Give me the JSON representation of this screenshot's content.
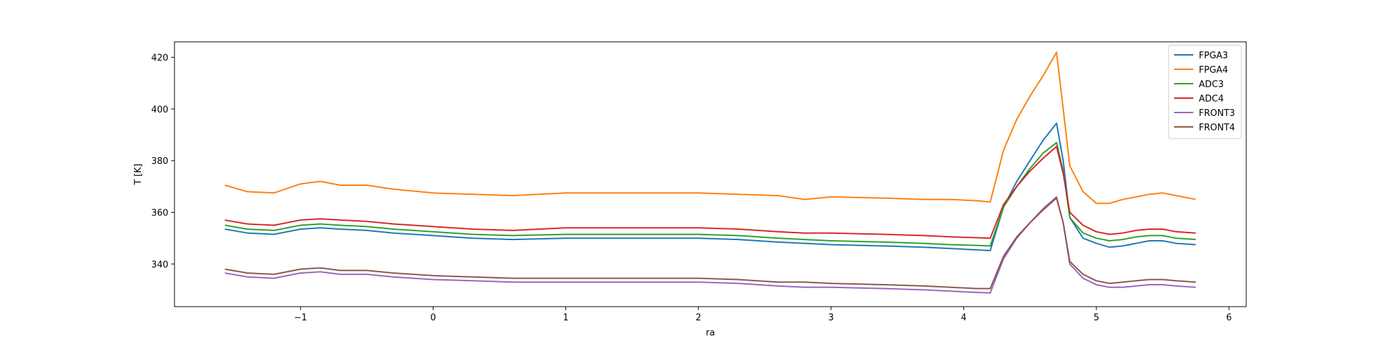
{
  "chart_data": {
    "type": "line",
    "title": "",
    "xlabel": "ra",
    "ylabel": "T [K]",
    "xlim": [
      -1.95,
      6.13
    ],
    "ylim": [
      323.5,
      426.0
    ],
    "xticks": [
      -1,
      0,
      1,
      2,
      3,
      4,
      5,
      6
    ],
    "xtick_labels": [
      "−1",
      "0",
      "1",
      "2",
      "3",
      "4",
      "5",
      "6"
    ],
    "yticks": [
      340,
      360,
      380,
      400,
      420
    ],
    "ytick_labels": [
      "340",
      "360",
      "380",
      "400",
      "420"
    ],
    "grid": false,
    "legend_position": "top-right",
    "x": [
      -1.57,
      -1.4,
      -1.2,
      -1.0,
      -0.85,
      -0.7,
      -0.5,
      -0.3,
      0.0,
      0.3,
      0.6,
      1.0,
      1.5,
      2.0,
      2.3,
      2.6,
      2.8,
      3.0,
      3.4,
      3.7,
      3.9,
      4.1,
      4.2,
      4.3,
      4.4,
      4.5,
      4.6,
      4.7,
      4.75,
      4.8,
      4.9,
      5.0,
      5.1,
      5.2,
      5.3,
      5.4,
      5.5,
      5.6,
      5.75
    ],
    "series": [
      {
        "name": "FPGA3",
        "color": "#1f77b4",
        "values": [
          353.5,
          352.0,
          351.5,
          353.5,
          354.0,
          353.5,
          353.0,
          352.0,
          351.0,
          350.0,
          349.5,
          350.0,
          350.0,
          350.0,
          349.5,
          348.5,
          348.0,
          347.5,
          347.0,
          346.5,
          346.0,
          345.5,
          345.2,
          362.0,
          372.0,
          380.0,
          388.0,
          394.5,
          380.0,
          358.0,
          350.0,
          348.0,
          346.5,
          347.0,
          348.0,
          349.0,
          349.0,
          348.0,
          347.5
        ]
      },
      {
        "name": "FPGA4",
        "color": "#ff7f0e",
        "values": [
          370.5,
          368.0,
          367.5,
          371.0,
          372.0,
          370.5,
          370.5,
          369.0,
          367.5,
          367.0,
          366.5,
          367.5,
          367.5,
          367.5,
          367.0,
          366.5,
          365.0,
          366.0,
          365.5,
          365.0,
          365.0,
          364.5,
          364.0,
          384.0,
          396.0,
          405.0,
          413.0,
          422.0,
          400.0,
          378.0,
          368.0,
          363.5,
          363.5,
          365.0,
          366.0,
          367.0,
          367.5,
          366.5,
          365.0
        ]
      },
      {
        "name": "ADC3",
        "color": "#2ca02c",
        "values": [
          355.0,
          353.5,
          353.0,
          355.0,
          355.5,
          355.0,
          354.5,
          353.5,
          352.5,
          351.5,
          351.0,
          351.5,
          351.5,
          351.5,
          351.0,
          350.0,
          349.5,
          349.0,
          348.5,
          348.0,
          347.5,
          347.2,
          347.0,
          362.0,
          370.0,
          377.0,
          383.0,
          387.0,
          376.0,
          358.0,
          352.0,
          350.0,
          349.0,
          349.5,
          350.5,
          351.0,
          351.0,
          350.0,
          349.5
        ]
      },
      {
        "name": "ADC4",
        "color": "#d62728",
        "values": [
          357.0,
          355.5,
          355.0,
          357.0,
          357.5,
          357.0,
          356.5,
          355.5,
          354.5,
          353.5,
          353.0,
          354.0,
          354.0,
          354.0,
          353.5,
          352.5,
          352.0,
          352.0,
          351.5,
          351.0,
          350.5,
          350.2,
          350.0,
          363.0,
          370.0,
          376.0,
          381.0,
          385.5,
          375.0,
          360.0,
          355.0,
          352.5,
          351.5,
          352.0,
          353.0,
          353.5,
          353.5,
          352.5,
          352.0
        ]
      },
      {
        "name": "FRONT3",
        "color": "#9467bd",
        "values": [
          336.5,
          335.0,
          334.5,
          336.5,
          337.0,
          336.0,
          336.0,
          335.0,
          334.0,
          333.5,
          333.0,
          333.0,
          333.0,
          333.0,
          332.5,
          331.5,
          331.0,
          331.0,
          330.5,
          330.0,
          329.5,
          329.0,
          328.8,
          342.0,
          350.0,
          356.0,
          361.5,
          366.0,
          356.0,
          340.0,
          334.5,
          332.0,
          331.0,
          331.0,
          331.5,
          332.0,
          332.0,
          331.5,
          331.0
        ]
      },
      {
        "name": "FRONT4",
        "color": "#8c564b",
        "values": [
          338.0,
          336.5,
          336.0,
          338.0,
          338.5,
          337.5,
          337.5,
          336.5,
          335.5,
          335.0,
          334.5,
          334.5,
          334.5,
          334.5,
          334.0,
          333.0,
          333.0,
          332.5,
          332.0,
          331.5,
          331.0,
          330.5,
          330.5,
          343.0,
          350.5,
          356.0,
          361.0,
          365.5,
          356.0,
          341.0,
          336.0,
          333.5,
          332.5,
          333.0,
          333.5,
          334.0,
          334.0,
          333.5,
          333.0
        ]
      }
    ]
  }
}
